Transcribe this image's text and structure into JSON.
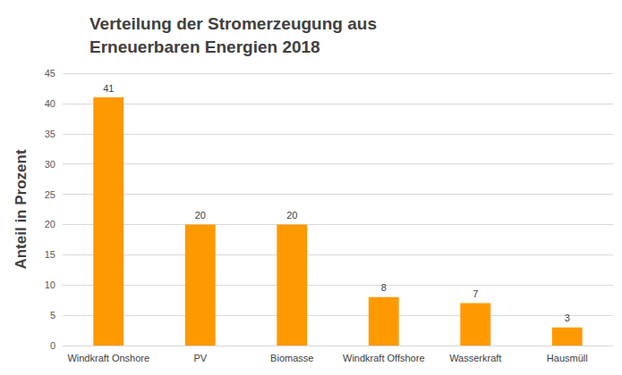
{
  "chart_data": {
    "type": "bar",
    "title": "Verteilung der Stromerzeugung aus Erneuerbaren Energien 2018",
    "y_label": "Anteil in Prozent",
    "categories": [
      "Windkraft Onshore",
      "PV",
      "Biomasse",
      "Windkraft Offshore",
      "Wasserkraft",
      "Hausmüll"
    ],
    "values": [
      41,
      20,
      20,
      8,
      7,
      3
    ],
    "color": "#ff9900",
    "ylim": [
      0,
      45
    ],
    "yticks": [
      0,
      5,
      10,
      15,
      20,
      25,
      30,
      35,
      40,
      45
    ],
    "grid": true,
    "data_labels": true
  }
}
